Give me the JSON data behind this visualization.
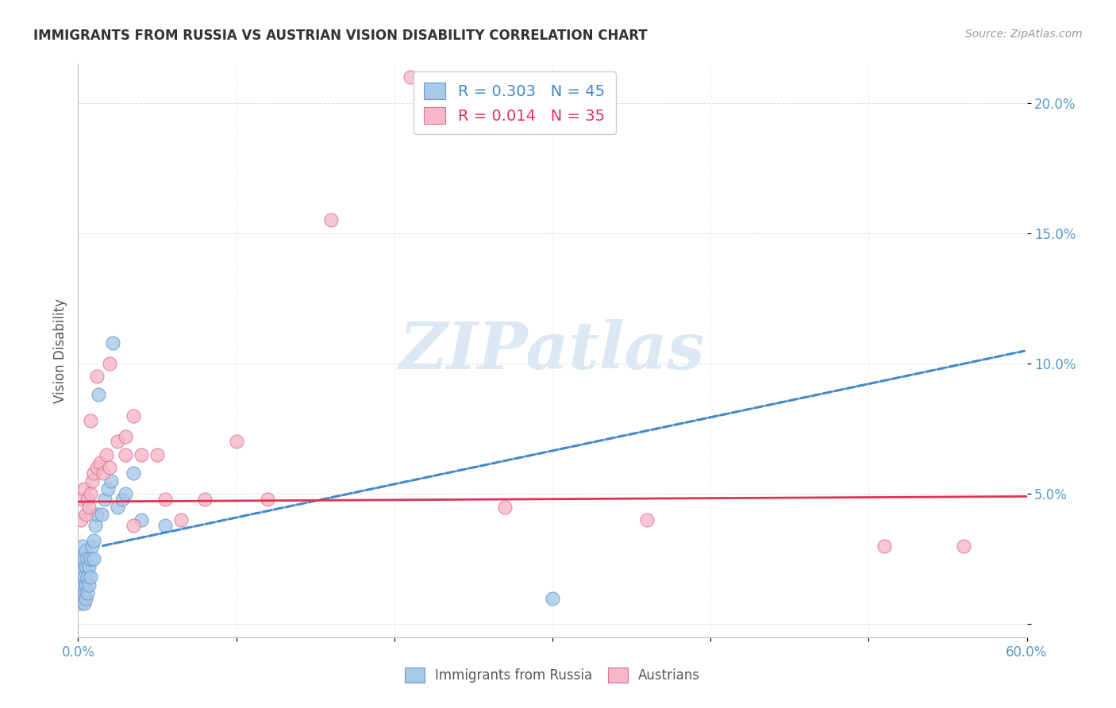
{
  "title": "IMMIGRANTS FROM RUSSIA VS AUSTRIAN VISION DISABILITY CORRELATION CHART",
  "source": "Source: ZipAtlas.com",
  "ylabel": "Vision Disability",
  "yticks": [
    0.0,
    0.05,
    0.1,
    0.15,
    0.2
  ],
  "ytick_labels": [
    "",
    "5.0%",
    "10.0%",
    "15.0%",
    "20.0%"
  ],
  "xlim": [
    0.0,
    0.6
  ],
  "ylim": [
    -0.005,
    0.215
  ],
  "series1_color": "#a8c8e8",
  "series1_edge": "#6699cc",
  "series2_color": "#f5b8c8",
  "series2_edge": "#e07090",
  "trend1_color": "#4488cc",
  "trend2_color": "#dd3355",
  "watermark_color": "#dde8f5",
  "watermark": "ZIPatlas",
  "legend_r1": "R = 0.303",
  "legend_n1": "N = 45",
  "legend_r2": "R = 0.014",
  "legend_n2": "N = 35",
  "background_color": "#ffffff",
  "grid_color": "#dddddd",
  "tick_color": "#5599cc",
  "series1_x": [
    0.001,
    0.001,
    0.001,
    0.002,
    0.002,
    0.002,
    0.002,
    0.003,
    0.003,
    0.003,
    0.003,
    0.003,
    0.004,
    0.004,
    0.004,
    0.004,
    0.005,
    0.005,
    0.005,
    0.005,
    0.006,
    0.006,
    0.006,
    0.007,
    0.007,
    0.008,
    0.008,
    0.009,
    0.01,
    0.01,
    0.011,
    0.012,
    0.013,
    0.015,
    0.017,
    0.019,
    0.021,
    0.022,
    0.025,
    0.028,
    0.03,
    0.035,
    0.04,
    0.055,
    0.3
  ],
  "series1_y": [
    0.01,
    0.015,
    0.02,
    0.008,
    0.012,
    0.018,
    0.022,
    0.01,
    0.015,
    0.02,
    0.025,
    0.03,
    0.008,
    0.012,
    0.018,
    0.025,
    0.01,
    0.015,
    0.022,
    0.028,
    0.012,
    0.018,
    0.025,
    0.015,
    0.022,
    0.018,
    0.025,
    0.03,
    0.025,
    0.032,
    0.038,
    0.042,
    0.088,
    0.042,
    0.048,
    0.052,
    0.055,
    0.108,
    0.045,
    0.048,
    0.05,
    0.058,
    0.04,
    0.038,
    0.01
  ],
  "series2_x": [
    0.002,
    0.003,
    0.004,
    0.005,
    0.006,
    0.007,
    0.008,
    0.009,
    0.01,
    0.012,
    0.014,
    0.016,
    0.018,
    0.02,
    0.025,
    0.03,
    0.035,
    0.04,
    0.05,
    0.065,
    0.08,
    0.1,
    0.16,
    0.21,
    0.27,
    0.36,
    0.51,
    0.56,
    0.03,
    0.055,
    0.008,
    0.012,
    0.02,
    0.035,
    0.12
  ],
  "series2_y": [
    0.04,
    0.048,
    0.052,
    0.042,
    0.048,
    0.045,
    0.05,
    0.055,
    0.058,
    0.06,
    0.062,
    0.058,
    0.065,
    0.06,
    0.07,
    0.065,
    0.08,
    0.065,
    0.065,
    0.04,
    0.048,
    0.07,
    0.155,
    0.21,
    0.045,
    0.04,
    0.03,
    0.03,
    0.072,
    0.048,
    0.078,
    0.095,
    0.1,
    0.038,
    0.048
  ],
  "trend1_x_start": 0.015,
  "trend1_y_start": 0.03,
  "trend1_x_end": 0.6,
  "trend1_y_end": 0.105,
  "trend2_x_start": 0.0,
  "trend2_y_start": 0.047,
  "trend2_x_end": 0.6,
  "trend2_y_end": 0.049
}
